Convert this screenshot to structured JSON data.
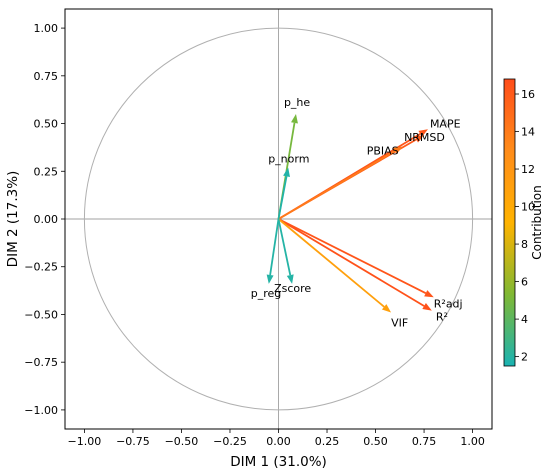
{
  "chart_data": {
    "type": "scatter",
    "subtype": "pca-correlation-circle",
    "title": "",
    "xlabel": "DIM 1 (31.0%)",
    "ylabel": "DIM 2 (17.3%)",
    "xlim": [
      -1.1,
      1.1
    ],
    "ylim": [
      -1.1,
      1.1
    ],
    "x_ticks": [
      -1.0,
      -0.75,
      -0.5,
      -0.25,
      0.0,
      0.25,
      0.5,
      0.75,
      1.0
    ],
    "x_tick_labels": [
      "−1.00",
      "−0.75",
      "−0.50",
      "−0.25",
      "0.00",
      "0.25",
      "0.50",
      "0.75",
      "1.00"
    ],
    "y_ticks": [
      -1.0,
      -0.75,
      -0.5,
      -0.25,
      0.0,
      0.25,
      0.5,
      0.75,
      1.0
    ],
    "y_tick_labels": [
      "−1.00",
      "−0.75",
      "−0.50",
      "−0.25",
      "0.00",
      "0.25",
      "0.50",
      "0.75",
      "1.00"
    ],
    "unit_circle": true,
    "zero_lines": true,
    "colorbar": {
      "label": "Contribution",
      "min": 1.5,
      "max": 16.8,
      "ticks": [
        2,
        4,
        6,
        8,
        10,
        12,
        14,
        16
      ],
      "colors": [
        "#1ab3b3",
        "#80b833",
        "#ffb300",
        "#ff8c1a",
        "#ff4d1a"
      ]
    },
    "variables": [
      {
        "name": "MAPE",
        "x": 0.77,
        "y": 0.47,
        "contribution": 16.3
      },
      {
        "name": "NRMSD",
        "x": 0.75,
        "y": 0.44,
        "contribution": 16.0
      },
      {
        "name": "PBIAS",
        "x": 0.64,
        "y": 0.38,
        "contribution": 14.0
      },
      {
        "name": "R²adj",
        "x": 0.8,
        "y": -0.41,
        "contribution": 16.3
      },
      {
        "name": "R²",
        "x": 0.79,
        "y": -0.48,
        "contribution": 16.5
      },
      {
        "name": "VIF",
        "x": 0.58,
        "y": -0.49,
        "contribution": 11.0
      },
      {
        "name": "p_he",
        "x": 0.09,
        "y": 0.55,
        "contribution": 5.0
      },
      {
        "name": "p_norm",
        "x": 0.05,
        "y": 0.27,
        "contribution": 1.8
      },
      {
        "name": "p_reg",
        "x": -0.05,
        "y": -0.34,
        "contribution": 1.9
      },
      {
        "name": "Zscore",
        "x": 0.07,
        "y": -0.34,
        "contribution": 1.9
      }
    ]
  }
}
